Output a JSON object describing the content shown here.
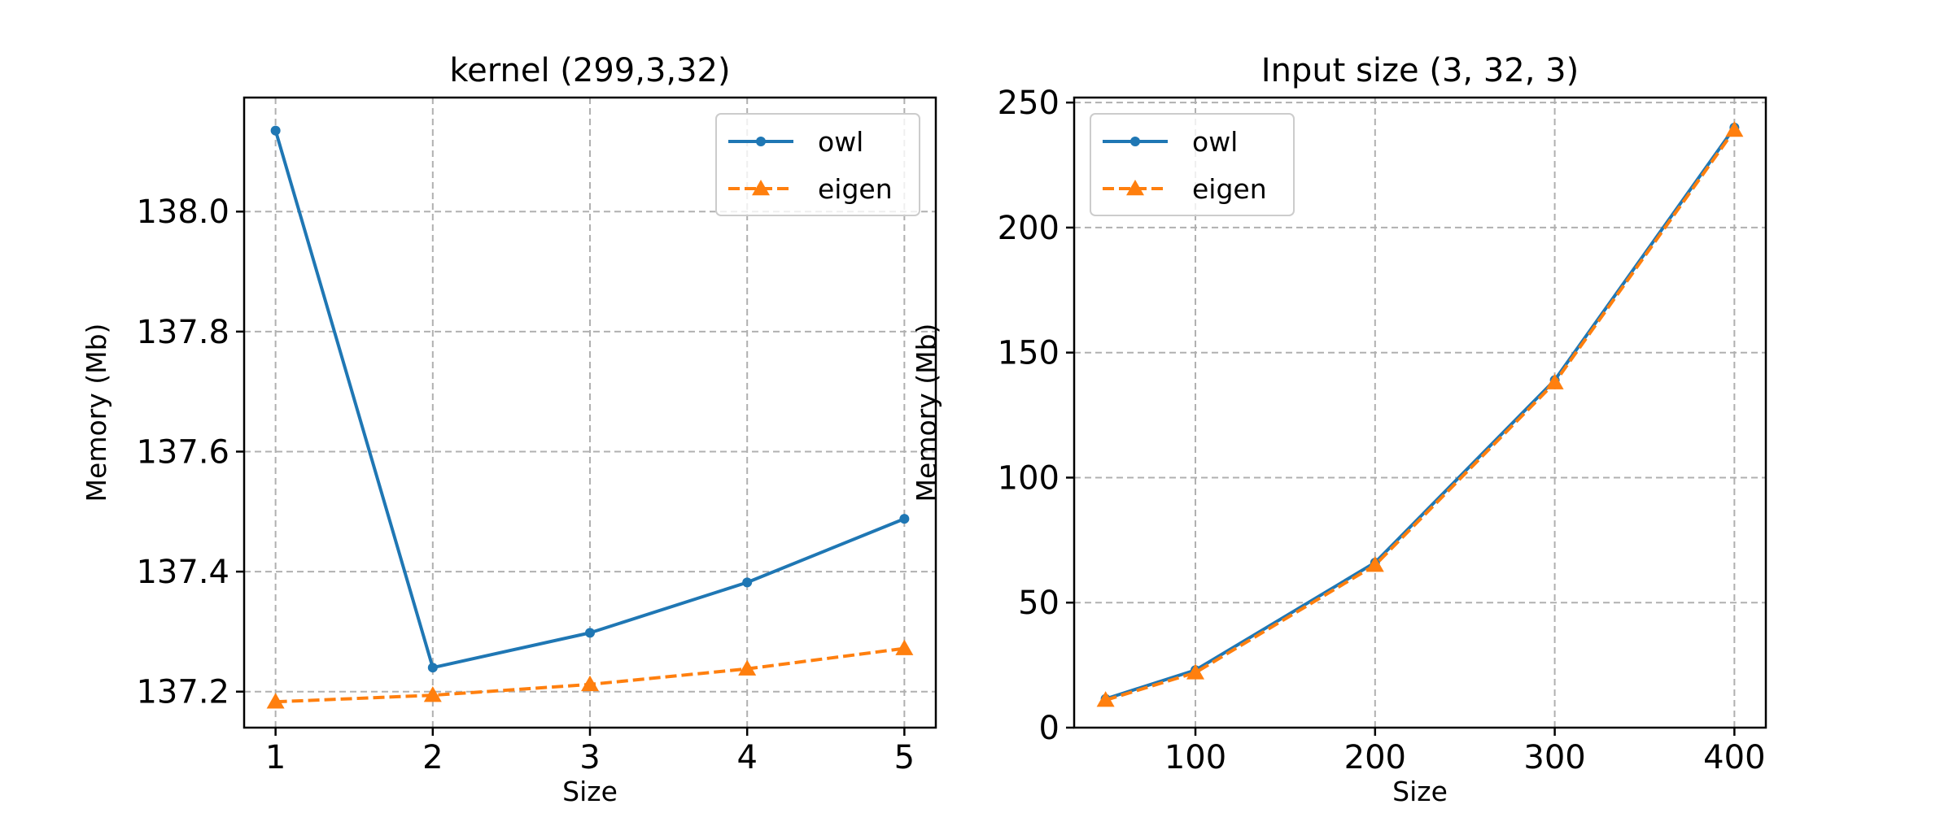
{
  "chart_data": [
    {
      "type": "line",
      "title": "kernel (299,3,32)",
      "xlabel": "Size",
      "ylabel": "Memory (Mb)",
      "x": [
        1,
        2,
        3,
        4,
        5
      ],
      "xlim": [
        0.8,
        5.2
      ],
      "ylim": [
        137.14,
        138.19
      ],
      "xticks": [
        1,
        2,
        3,
        4,
        5
      ],
      "yticks": [
        137.2,
        137.4,
        137.6,
        137.8,
        138.0
      ],
      "ytick_labels": [
        "137.2",
        "137.4",
        "137.6",
        "137.8",
        "138.0"
      ],
      "grid": true,
      "legend_position": "top-right",
      "series": [
        {
          "name": "owl",
          "color": "#1f77b4",
          "marker": "circle",
          "linestyle": "solid",
          "values": [
            138.135,
            137.24,
            137.298,
            137.382,
            137.488
          ]
        },
        {
          "name": "eigen",
          "color": "#ff7f0e",
          "marker": "triangle",
          "linestyle": "dashed",
          "values": [
            137.183,
            137.194,
            137.212,
            137.238,
            137.272
          ]
        }
      ]
    },
    {
      "type": "line",
      "title": "Input size (3, 32, 3)",
      "xlabel": "Size",
      "ylabel": "Memory (Mb)",
      "x": [
        50,
        100,
        200,
        300,
        400
      ],
      "xlim": [
        32.5,
        417.5
      ],
      "ylim": [
        0,
        252
      ],
      "xticks": [
        100,
        200,
        300,
        400
      ],
      "yticks": [
        0,
        50,
        100,
        150,
        200,
        250
      ],
      "ytick_labels": [
        "0",
        "50",
        "100",
        "150",
        "200",
        "250"
      ],
      "grid": true,
      "legend_position": "top-left",
      "series": [
        {
          "name": "owl",
          "color": "#1f77b4",
          "marker": "circle",
          "linestyle": "solid",
          "values": [
            11.5,
            23,
            66,
            139,
            240
          ]
        },
        {
          "name": "eigen",
          "color": "#ff7f0e",
          "marker": "triangle",
          "linestyle": "dashed",
          "values": [
            11,
            22,
            65,
            138,
            239
          ]
        }
      ]
    }
  ]
}
